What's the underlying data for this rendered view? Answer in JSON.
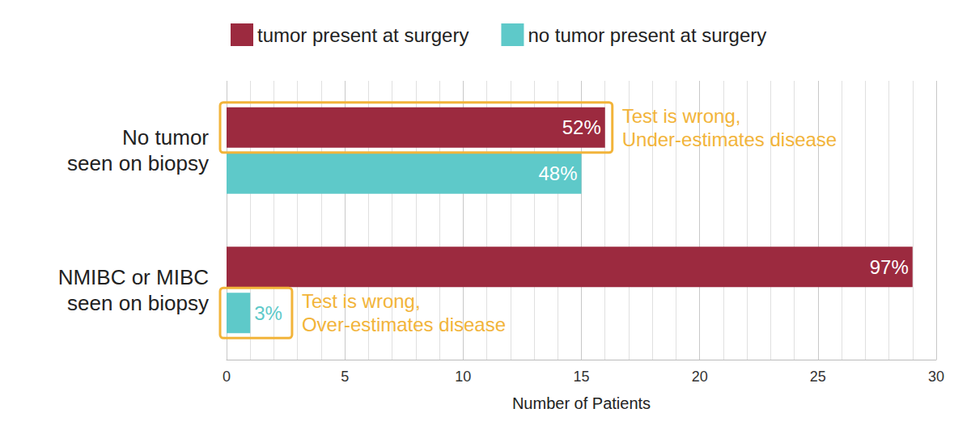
{
  "chart_data": {
    "type": "bar",
    "orientation": "horizontal",
    "categories": [
      "No tumor\nseen on biopsy",
      "NMIBC or MIBC\nseen on biopsy"
    ],
    "series": [
      {
        "name": "tumor present at surgery",
        "color": "#9c2a3f",
        "values": [
          16,
          29
        ],
        "percent_labels": [
          "52%",
          "97%"
        ]
      },
      {
        "name": "no tumor present at surgery",
        "color": "#5ec9c9",
        "values": [
          15,
          1
        ],
        "percent_labels": [
          "48%",
          "3%"
        ]
      }
    ],
    "xlabel": "Number of Patients",
    "xlim": [
      0,
      30
    ],
    "xticks": [
      0,
      5,
      10,
      15,
      20,
      25,
      30
    ],
    "grid": true,
    "legend": "top",
    "annotations": [
      {
        "text": "Test is wrong,\nUnder-estimates disease",
        "category": "No tumor\nseen on biopsy",
        "series": "tumor present at surgery",
        "color": "#f2b43a"
      },
      {
        "text": "Test is wrong,\nOver-estimates disease",
        "category": "NMIBC or MIBC\nseen on biopsy",
        "series": "no tumor present at surgery",
        "color": "#f2b43a"
      }
    ]
  }
}
